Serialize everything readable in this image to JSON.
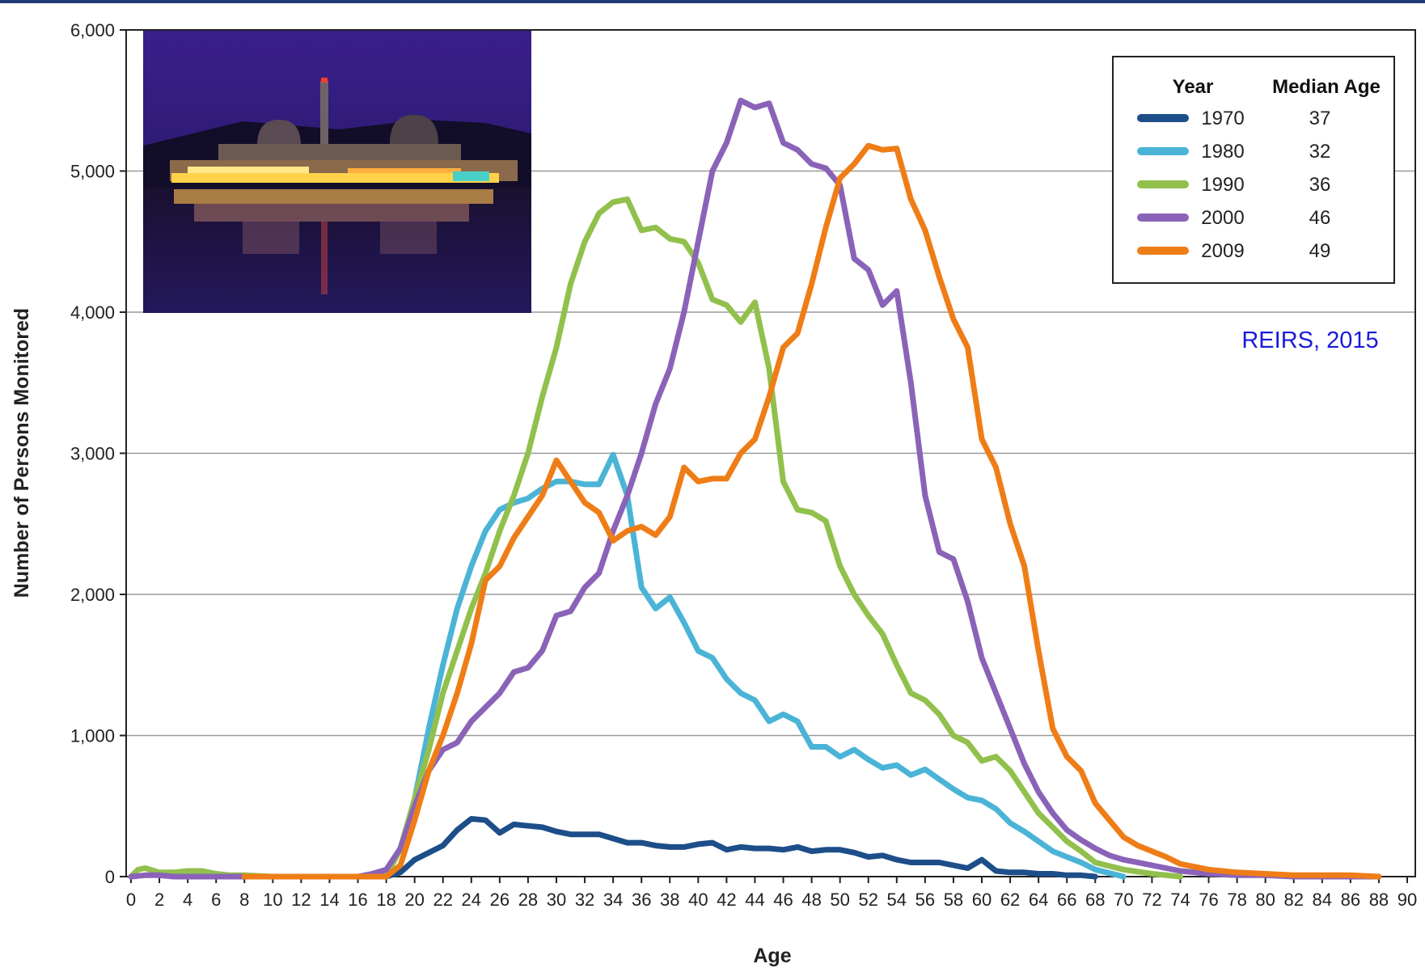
{
  "colors": {
    "1970": "#1d4e89",
    "1980": "#4bb4d6",
    "1990": "#92c04d",
    "2000": "#8a63b8",
    "2009": "#ef7d17",
    "grid": "#9a9a9a",
    "source": "#1a1adc",
    "top_rule": "#1f3b73"
  },
  "source_note": "REIRS, 2015",
  "photo": {
    "icon": "nuclear-power-plant-night-photo"
  },
  "chart_data": {
    "type": "line",
    "title": "",
    "xlabel": "Age",
    "ylabel": "Number of Persons Monitored",
    "xlim": [
      0,
      90
    ],
    "ylim": [
      0,
      6000
    ],
    "grid": "horizontal",
    "legend_position": "top-right",
    "x_ticks": [
      "0",
      "2",
      "4",
      "6",
      "8",
      "10",
      "12",
      "14",
      "16",
      "18",
      "20",
      "22",
      "24",
      "26",
      "28",
      "30",
      "32",
      "34",
      "36",
      "38",
      "40",
      "42",
      "44",
      "46",
      "48",
      "50",
      "52",
      "54",
      "56",
      "58",
      "60",
      "62",
      "64",
      "66",
      "68",
      "70",
      "72",
      "74",
      "76",
      "78",
      "80",
      "82",
      "84",
      "86",
      "88",
      "90"
    ],
    "y_ticks": [
      {
        "value": 0,
        "label": "0"
      },
      {
        "value": 1000,
        "label": "1,000"
      },
      {
        "value": 2000,
        "label": "2,000"
      },
      {
        "value": 3000,
        "label": "3,000"
      },
      {
        "value": 4000,
        "label": "4,000"
      },
      {
        "value": 5000,
        "label": "5,000"
      },
      {
        "value": 6000,
        "label": "6,000"
      }
    ],
    "legend": {
      "year_header": "Year",
      "median_header": "Median Age",
      "entries": [
        {
          "year": "1970",
          "median": "37"
        },
        {
          "year": "1980",
          "median": "32"
        },
        {
          "year": "1990",
          "median": "36"
        },
        {
          "year": "2000",
          "median": "46"
        },
        {
          "year": "2009",
          "median": "49"
        }
      ]
    },
    "series": [
      {
        "name": "1970",
        "points": [
          [
            18,
            0
          ],
          [
            19,
            30
          ],
          [
            20,
            120
          ],
          [
            22,
            220
          ],
          [
            23,
            330
          ],
          [
            24,
            410
          ],
          [
            25,
            400
          ],
          [
            26,
            310
          ],
          [
            27,
            370
          ],
          [
            28,
            360
          ],
          [
            29,
            350
          ],
          [
            30,
            320
          ],
          [
            31,
            300
          ],
          [
            32,
            300
          ],
          [
            33,
            300
          ],
          [
            34,
            270
          ],
          [
            35,
            240
          ],
          [
            36,
            240
          ],
          [
            37,
            220
          ],
          [
            38,
            210
          ],
          [
            39,
            210
          ],
          [
            40,
            230
          ],
          [
            41,
            240
          ],
          [
            42,
            190
          ],
          [
            43,
            210
          ],
          [
            44,
            200
          ],
          [
            45,
            200
          ],
          [
            46,
            190
          ],
          [
            47,
            210
          ],
          [
            48,
            180
          ],
          [
            49,
            190
          ],
          [
            50,
            190
          ],
          [
            51,
            170
          ],
          [
            52,
            140
          ],
          [
            53,
            150
          ],
          [
            54,
            120
          ],
          [
            55,
            100
          ],
          [
            56,
            100
          ],
          [
            57,
            100
          ],
          [
            58,
            80
          ],
          [
            59,
            60
          ],
          [
            60,
            120
          ],
          [
            61,
            40
          ],
          [
            62,
            30
          ],
          [
            63,
            30
          ],
          [
            64,
            20
          ],
          [
            65,
            20
          ],
          [
            66,
            10
          ],
          [
            67,
            10
          ],
          [
            68,
            0
          ]
        ]
      },
      {
        "name": "1980",
        "points": [
          [
            14,
            0
          ],
          [
            16,
            0
          ],
          [
            18,
            20
          ],
          [
            19,
            200
          ],
          [
            20,
            550
          ],
          [
            21,
            1050
          ],
          [
            22,
            1500
          ],
          [
            23,
            1900
          ],
          [
            24,
            2200
          ],
          [
            25,
            2450
          ],
          [
            26,
            2600
          ],
          [
            27,
            2650
          ],
          [
            28,
            2680
          ],
          [
            29,
            2750
          ],
          [
            30,
            2800
          ],
          [
            31,
            2800
          ],
          [
            32,
            2780
          ],
          [
            33,
            2780
          ],
          [
            34,
            2990
          ],
          [
            35,
            2700
          ],
          [
            36,
            2050
          ],
          [
            37,
            1900
          ],
          [
            38,
            1980
          ],
          [
            39,
            1800
          ],
          [
            40,
            1600
          ],
          [
            41,
            1550
          ],
          [
            42,
            1400
          ],
          [
            43,
            1300
          ],
          [
            44,
            1250
          ],
          [
            45,
            1100
          ],
          [
            46,
            1150
          ],
          [
            47,
            1100
          ],
          [
            48,
            920
          ],
          [
            49,
            920
          ],
          [
            50,
            850
          ],
          [
            51,
            900
          ],
          [
            52,
            830
          ],
          [
            53,
            770
          ],
          [
            54,
            790
          ],
          [
            55,
            720
          ],
          [
            56,
            760
          ],
          [
            57,
            690
          ],
          [
            58,
            620
          ],
          [
            59,
            560
          ],
          [
            60,
            540
          ],
          [
            61,
            480
          ],
          [
            62,
            380
          ],
          [
            63,
            320
          ],
          [
            64,
            250
          ],
          [
            65,
            180
          ],
          [
            66,
            140
          ],
          [
            67,
            100
          ],
          [
            68,
            50
          ],
          [
            70,
            0
          ]
        ]
      },
      {
        "name": "1990",
        "points": [
          [
            0,
            0
          ],
          [
            0.5,
            50
          ],
          [
            1,
            60
          ],
          [
            2,
            30
          ],
          [
            3,
            30
          ],
          [
            4,
            40
          ],
          [
            5,
            40
          ],
          [
            6,
            20
          ],
          [
            7,
            10
          ],
          [
            8,
            10
          ],
          [
            10,
            0
          ],
          [
            18,
            0
          ],
          [
            19,
            200
          ],
          [
            20,
            550
          ],
          [
            21,
            900
          ],
          [
            22,
            1300
          ],
          [
            23,
            1600
          ],
          [
            24,
            1900
          ],
          [
            25,
            2150
          ],
          [
            26,
            2450
          ],
          [
            27,
            2700
          ],
          [
            28,
            3000
          ],
          [
            29,
            3400
          ],
          [
            30,
            3750
          ],
          [
            31,
            4200
          ],
          [
            32,
            4500
          ],
          [
            33,
            4700
          ],
          [
            34,
            4780
          ],
          [
            35,
            4800
          ],
          [
            36,
            4580
          ],
          [
            37,
            4600
          ],
          [
            38,
            4520
          ],
          [
            39,
            4500
          ],
          [
            40,
            4350
          ],
          [
            41,
            4090
          ],
          [
            42,
            4050
          ],
          [
            43,
            3930
          ],
          [
            44,
            4070
          ],
          [
            45,
            3600
          ],
          [
            46,
            2800
          ],
          [
            47,
            2600
          ],
          [
            48,
            2580
          ],
          [
            49,
            2520
          ],
          [
            50,
            2200
          ],
          [
            51,
            2000
          ],
          [
            52,
            1850
          ],
          [
            53,
            1720
          ],
          [
            54,
            1500
          ],
          [
            55,
            1300
          ],
          [
            56,
            1250
          ],
          [
            57,
            1150
          ],
          [
            58,
            1000
          ],
          [
            59,
            950
          ],
          [
            60,
            820
          ],
          [
            61,
            850
          ],
          [
            62,
            750
          ],
          [
            63,
            600
          ],
          [
            64,
            450
          ],
          [
            65,
            350
          ],
          [
            66,
            250
          ],
          [
            67,
            180
          ],
          [
            68,
            100
          ],
          [
            70,
            50
          ],
          [
            72,
            20
          ],
          [
            74,
            0
          ]
        ]
      },
      {
        "name": "2000",
        "points": [
          [
            0,
            0
          ],
          [
            1,
            10
          ],
          [
            2,
            10
          ],
          [
            3,
            0
          ],
          [
            4,
            0
          ],
          [
            16,
            0
          ],
          [
            17,
            20
          ],
          [
            18,
            50
          ],
          [
            19,
            200
          ],
          [
            20,
            500
          ],
          [
            21,
            750
          ],
          [
            22,
            900
          ],
          [
            23,
            950
          ],
          [
            24,
            1100
          ],
          [
            25,
            1200
          ],
          [
            26,
            1300
          ],
          [
            27,
            1450
          ],
          [
            28,
            1480
          ],
          [
            29,
            1600
          ],
          [
            30,
            1850
          ],
          [
            31,
            1880
          ],
          [
            32,
            2050
          ],
          [
            33,
            2150
          ],
          [
            34,
            2450
          ],
          [
            35,
            2700
          ],
          [
            36,
            3000
          ],
          [
            37,
            3350
          ],
          [
            38,
            3600
          ],
          [
            39,
            4000
          ],
          [
            40,
            4500
          ],
          [
            41,
            5000
          ],
          [
            42,
            5200
          ],
          [
            43,
            5500
          ],
          [
            44,
            5450
          ],
          [
            45,
            5480
          ],
          [
            46,
            5200
          ],
          [
            47,
            5150
          ],
          [
            48,
            5050
          ],
          [
            49,
            5020
          ],
          [
            50,
            4900
          ],
          [
            51,
            4380
          ],
          [
            52,
            4300
          ],
          [
            53,
            4050
          ],
          [
            54,
            4150
          ],
          [
            55,
            3500
          ],
          [
            56,
            2700
          ],
          [
            57,
            2300
          ],
          [
            58,
            2250
          ],
          [
            59,
            1950
          ],
          [
            60,
            1550
          ],
          [
            61,
            1300
          ],
          [
            62,
            1050
          ],
          [
            63,
            800
          ],
          [
            64,
            600
          ],
          [
            65,
            450
          ],
          [
            66,
            330
          ],
          [
            67,
            260
          ],
          [
            68,
            200
          ],
          [
            69,
            150
          ],
          [
            70,
            120
          ],
          [
            72,
            80
          ],
          [
            74,
            40
          ],
          [
            76,
            20
          ],
          [
            78,
            10
          ],
          [
            80,
            10
          ],
          [
            82,
            0
          ],
          [
            84,
            0
          ],
          [
            86,
            0
          ],
          [
            88,
            0
          ]
        ]
      },
      {
        "name": "2009",
        "points": [
          [
            8,
            0
          ],
          [
            9,
            0
          ],
          [
            18,
            0
          ],
          [
            19,
            80
          ],
          [
            20,
            400
          ],
          [
            21,
            750
          ],
          [
            22,
            1000
          ],
          [
            23,
            1300
          ],
          [
            24,
            1650
          ],
          [
            25,
            2100
          ],
          [
            26,
            2200
          ],
          [
            27,
            2400
          ],
          [
            28,
            2550
          ],
          [
            29,
            2700
          ],
          [
            30,
            2950
          ],
          [
            31,
            2800
          ],
          [
            32,
            2650
          ],
          [
            33,
            2580
          ],
          [
            34,
            2380
          ],
          [
            35,
            2450
          ],
          [
            36,
            2480
          ],
          [
            37,
            2420
          ],
          [
            38,
            2550
          ],
          [
            39,
            2900
          ],
          [
            40,
            2800
          ],
          [
            41,
            2820
          ],
          [
            42,
            2820
          ],
          [
            43,
            3000
          ],
          [
            44,
            3100
          ],
          [
            45,
            3400
          ],
          [
            46,
            3750
          ],
          [
            47,
            3850
          ],
          [
            48,
            4200
          ],
          [
            49,
            4600
          ],
          [
            50,
            4950
          ],
          [
            51,
            5050
          ],
          [
            52,
            5180
          ],
          [
            53,
            5150
          ],
          [
            54,
            5160
          ],
          [
            55,
            4800
          ],
          [
            56,
            4580
          ],
          [
            57,
            4250
          ],
          [
            58,
            3950
          ],
          [
            59,
            3750
          ],
          [
            60,
            3100
          ],
          [
            61,
            2900
          ],
          [
            62,
            2500
          ],
          [
            63,
            2200
          ],
          [
            64,
            1600
          ],
          [
            65,
            1050
          ],
          [
            66,
            850
          ],
          [
            67,
            750
          ],
          [
            68,
            520
          ],
          [
            69,
            400
          ],
          [
            70,
            280
          ],
          [
            71,
            220
          ],
          [
            72,
            180
          ],
          [
            73,
            140
          ],
          [
            74,
            90
          ],
          [
            75,
            70
          ],
          [
            76,
            50
          ],
          [
            78,
            30
          ],
          [
            80,
            20
          ],
          [
            82,
            10
          ],
          [
            84,
            10
          ],
          [
            86,
            10
          ],
          [
            88,
            0
          ]
        ]
      }
    ]
  }
}
